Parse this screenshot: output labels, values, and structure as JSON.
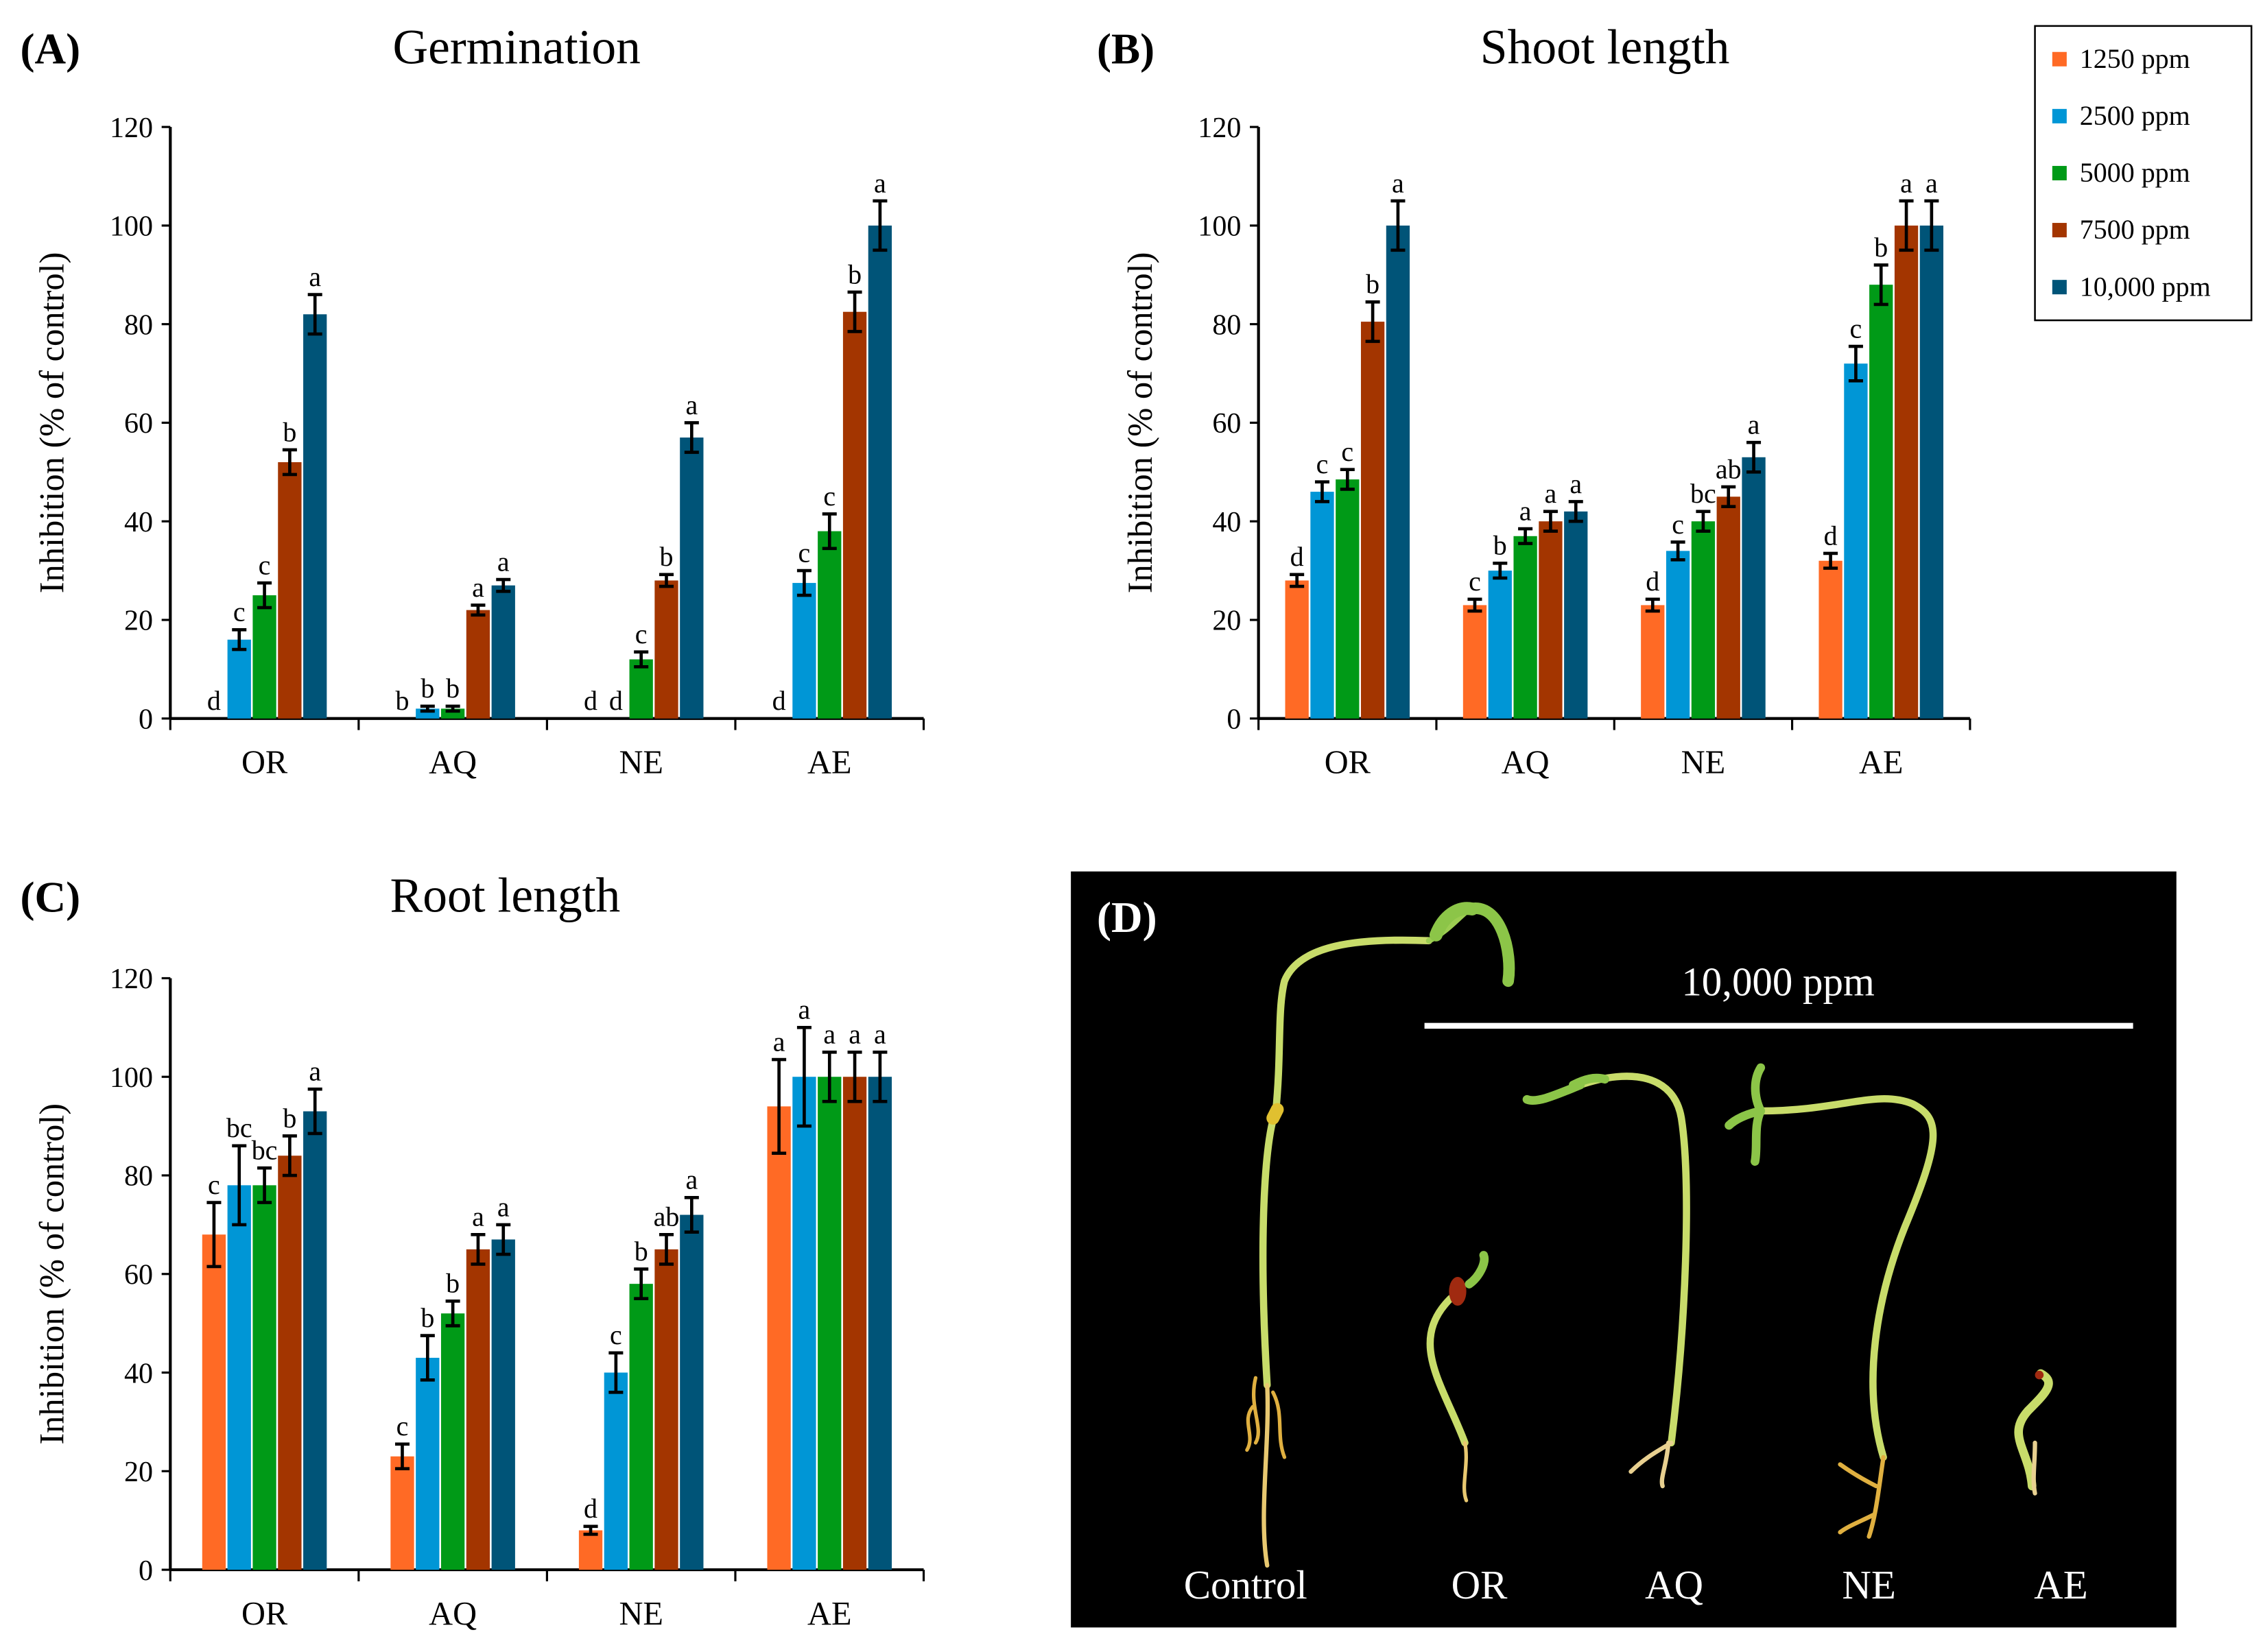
{
  "legend": {
    "entries": [
      "1250 ppm",
      "2500 ppm",
      "5000 ppm",
      "7500 ppm",
      "10,000 ppm"
    ],
    "colors": [
      "#ff6a25",
      "#0096d6",
      "#009a17",
      "#a33500",
      "#005478"
    ]
  },
  "chart_data": [
    {
      "panel": "(A)",
      "type": "bar",
      "title": "Germination",
      "xlabel": "",
      "ylabel": "Inhibition (% of control)",
      "ylim": [
        0,
        120
      ],
      "yticks": [
        0,
        20,
        40,
        60,
        80,
        100,
        120
      ],
      "categories": [
        "OR",
        "AQ",
        "NE",
        "AE"
      ],
      "series": [
        {
          "name": "1250 ppm",
          "values": [
            0,
            0,
            0,
            0
          ],
          "errors": [
            0,
            0,
            0,
            0
          ],
          "letters": [
            "d",
            "b",
            "d",
            "d"
          ]
        },
        {
          "name": "2500 ppm",
          "values": [
            16,
            2,
            0,
            27.5
          ],
          "errors": [
            2,
            0.5,
            0,
            2.5
          ],
          "letters": [
            "c",
            "b",
            "d",
            "c"
          ]
        },
        {
          "name": "5000 ppm",
          "values": [
            25,
            2,
            12,
            38
          ],
          "errors": [
            2.5,
            0.5,
            1.5,
            3.5
          ],
          "letters": [
            "c",
            "b",
            "c",
            "c"
          ]
        },
        {
          "name": "7500 ppm",
          "values": [
            52,
            22,
            28,
            82.5
          ],
          "errors": [
            2.5,
            1,
            1.2,
            4
          ],
          "letters": [
            "b",
            "a",
            "b",
            "b"
          ]
        },
        {
          "name": "10,000 ppm",
          "values": [
            82,
            27,
            57,
            100
          ],
          "errors": [
            4,
            1.2,
            3,
            5
          ],
          "letters": [
            "a",
            "a",
            "a",
            "a"
          ]
        }
      ]
    },
    {
      "panel": "(B)",
      "type": "bar",
      "title": "Shoot length",
      "xlabel": "",
      "ylabel": "Inhibition (% of control)",
      "ylim": [
        0,
        120
      ],
      "yticks": [
        0,
        20,
        40,
        60,
        80,
        100,
        120
      ],
      "categories": [
        "OR",
        "AQ",
        "NE",
        "AE"
      ],
      "legend_position": "top-right",
      "series": [
        {
          "name": "1250 ppm",
          "values": [
            28,
            23,
            23,
            32
          ],
          "errors": [
            1.2,
            1.2,
            1.2,
            1.5
          ],
          "letters": [
            "d",
            "c",
            "d",
            "d"
          ]
        },
        {
          "name": "2500 ppm",
          "values": [
            46,
            30,
            34,
            72
          ],
          "errors": [
            2,
            1.5,
            1.8,
            3.5
          ],
          "letters": [
            "c",
            "b",
            "c",
            "c"
          ]
        },
        {
          "name": "5000 ppm",
          "values": [
            48.5,
            37,
            40,
            88
          ],
          "errors": [
            2,
            1.5,
            2,
            4
          ],
          "letters": [
            "c",
            "a",
            "bc",
            "b"
          ]
        },
        {
          "name": "7500 ppm",
          "values": [
            80.5,
            40,
            45,
            100
          ],
          "errors": [
            4,
            2,
            2,
            5
          ],
          "letters": [
            "b",
            "a",
            "ab",
            "a"
          ]
        },
        {
          "name": "10,000 ppm",
          "values": [
            100,
            42,
            53,
            100
          ],
          "errors": [
            5,
            2,
            3,
            5
          ],
          "letters": [
            "a",
            "a",
            "a",
            "a"
          ]
        }
      ]
    },
    {
      "panel": "(C)",
      "type": "bar",
      "title": "Root length",
      "xlabel": "",
      "ylabel": "Inhibition (% of control)",
      "ylim": [
        0,
        120
      ],
      "yticks": [
        0,
        20,
        40,
        60,
        80,
        100,
        120
      ],
      "categories": [
        "OR",
        "AQ",
        "NE",
        "AE"
      ],
      "series": [
        {
          "name": "1250 ppm",
          "values": [
            68,
            23,
            8,
            94
          ],
          "errors": [
            6.5,
            2.5,
            0.8,
            9.5
          ],
          "letters": [
            "c",
            "c",
            "d",
            "a"
          ]
        },
        {
          "name": "2500 ppm",
          "values": [
            78,
            43,
            40,
            100
          ],
          "errors": [
            8,
            4.5,
            4,
            10
          ],
          "letters": [
            "bc",
            "b",
            "c",
            "a"
          ]
        },
        {
          "name": "5000 ppm",
          "values": [
            78,
            52,
            58,
            100
          ],
          "errors": [
            3.5,
            2.5,
            3,
            5
          ],
          "letters": [
            "bc",
            "b",
            "b",
            "a"
          ]
        },
        {
          "name": "7500 ppm",
          "values": [
            84,
            65,
            65,
            100
          ],
          "errors": [
            4,
            3,
            3,
            5
          ],
          "letters": [
            "b",
            "a",
            "ab",
            "a"
          ]
        },
        {
          "name": "10,000 ppm",
          "values": [
            93,
            67,
            72,
            100
          ],
          "errors": [
            4.5,
            3,
            3.5,
            5
          ],
          "letters": [
            "a",
            "a",
            "a",
            "a"
          ]
        }
      ]
    }
  ],
  "photo": {
    "panel": "(D)",
    "treatment_label": "10,000 ppm",
    "labels": [
      "Control",
      "OR",
      "AQ",
      "NE",
      "AE"
    ]
  }
}
